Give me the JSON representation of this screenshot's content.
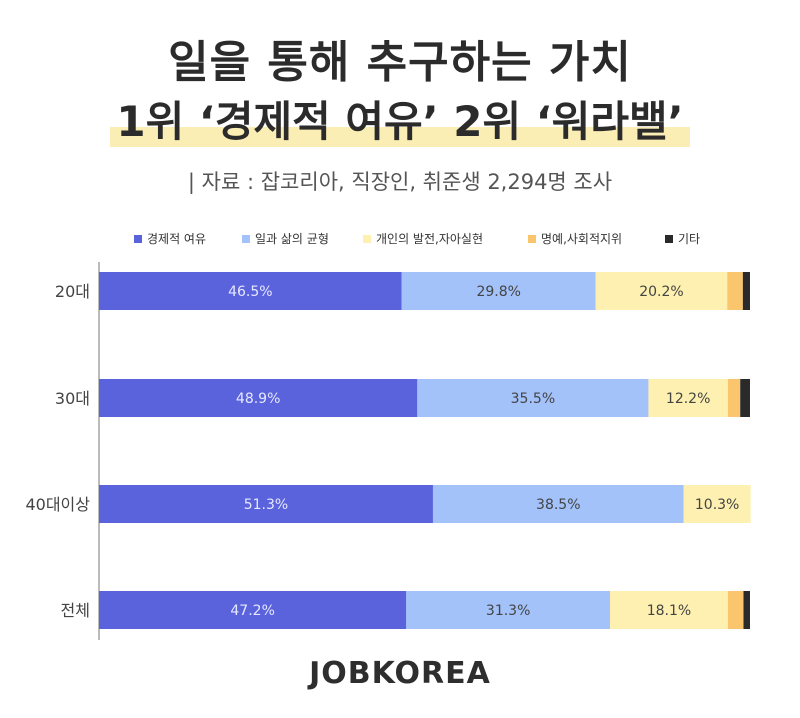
{
  "header": {
    "title_line1": "일을 통해 추구하는 가치",
    "title_line2": "1위 ‘경제적 여유’  2위 ‘워라밸’",
    "source": "| 자료 : 잡코리아,  직장인, 취준생 2,294명 조사"
  },
  "footer": {
    "brand": "JOBKOREA"
  },
  "chart_data": {
    "type": "bar",
    "orientation": "horizontal",
    "stacked": true,
    "categories": [
      "20대",
      "30대",
      "40대이상",
      "전체"
    ],
    "series": [
      {
        "name": "경제적 여유",
        "color": "#5b63dc",
        "label_color": "#e6e8ff",
        "values": [
          46.5,
          48.9,
          51.3,
          47.2
        ],
        "labels": [
          "46.5%",
          "48.9%",
          "51.3%",
          "47.2%"
        ]
      },
      {
        "name": "일과 삶의 균형",
        "color": "#a3c2fa",
        "label_color": "#444444",
        "values": [
          29.8,
          35.5,
          38.5,
          31.3
        ],
        "labels": [
          "29.8%",
          "35.5%",
          "38.5%",
          "31.3%"
        ]
      },
      {
        "name": "개인의 발전,자아실현",
        "color": "#fdf0b0",
        "label_color": "#444444",
        "values": [
          20.2,
          12.2,
          10.3,
          18.1
        ],
        "labels": [
          "20.2%",
          "12.2%",
          "10.3%",
          "18.1%"
        ]
      },
      {
        "name": "명예,사회적지위",
        "color": "#fbc56e",
        "label_color": "#444444",
        "values": [
          2.4,
          1.9,
          0,
          2.4
        ],
        "labels": [
          "",
          "",
          "",
          ""
        ]
      },
      {
        "name": "기타",
        "color": "#2a2a2a",
        "label_color": "#444444",
        "values": [
          1.1,
          1.5,
          0,
          1.0
        ],
        "labels": [
          "",
          "",
          "",
          ""
        ]
      }
    ],
    "xlim": [
      0,
      100
    ],
    "legend_position": "top",
    "grid": false
  }
}
